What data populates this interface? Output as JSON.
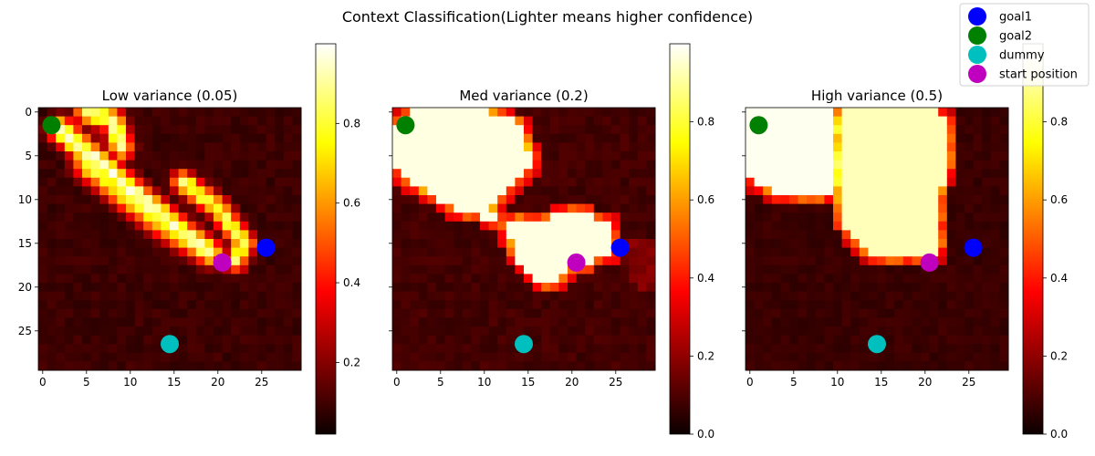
{
  "figure": {
    "title": "Context Classification(Lighter means higher confidence)"
  },
  "legend": {
    "placement": "top-right",
    "entries": [
      {
        "label": "goal1",
        "color": "#0000ff"
      },
      {
        "label": "goal2",
        "color": "#008000"
      },
      {
        "label": "dummy",
        "color": "#00bfbf"
      },
      {
        "label": "start position",
        "color": "#bf00bf"
      }
    ]
  },
  "colormap": "hot",
  "chart_data": [
    {
      "type": "heatmap",
      "title": "Low variance (0.05)",
      "grid_size": [
        30,
        30
      ],
      "xlim": [
        0,
        29
      ],
      "ylim": [
        29,
        0
      ],
      "x_ticks": [
        0,
        5,
        10,
        15,
        20,
        25
      ],
      "y_ticks": [
        0,
        5,
        10,
        15,
        20,
        25
      ],
      "colorbar_ticks": [
        "0.2",
        "0.4",
        "0.6",
        "0.8"
      ],
      "colorbar_range": [
        0.02,
        1.0
      ],
      "markers": [
        {
          "name": "goal1",
          "x": 25.5,
          "y": 15.5,
          "color": "#0000ff"
        },
        {
          "name": "goal2",
          "x": 1,
          "y": 1.5,
          "color": "#008000"
        },
        {
          "name": "dummy",
          "x": 14.5,
          "y": 26.5,
          "color": "#00bfbf"
        },
        {
          "name": "start position",
          "x": 20.5,
          "y": 17.2,
          "color": "#bf00bf"
        }
      ]
    },
    {
      "type": "heatmap",
      "title": "Med variance (0.2)",
      "grid_size": [
        30,
        30
      ],
      "xlim": [
        0,
        29
      ],
      "ylim": [
        29,
        0
      ],
      "x_ticks": [
        0,
        5,
        10,
        15,
        20,
        25
      ],
      "y_ticks": [
        0,
        5,
        10,
        15,
        20,
        25
      ],
      "colorbar_ticks": [
        "0.0",
        "0.2",
        "0.4",
        "0.6",
        "0.8"
      ],
      "colorbar_range": [
        0.0,
        1.0
      ],
      "markers": [
        {
          "name": "goal1",
          "x": 25.5,
          "y": 15.5,
          "color": "#0000ff"
        },
        {
          "name": "goal2",
          "x": 1,
          "y": 1.5,
          "color": "#008000"
        },
        {
          "name": "dummy",
          "x": 14.5,
          "y": 26.5,
          "color": "#00bfbf"
        },
        {
          "name": "start position",
          "x": 20.5,
          "y": 17.2,
          "color": "#bf00bf"
        }
      ]
    },
    {
      "type": "heatmap",
      "title": "High variance (0.5)",
      "grid_size": [
        30,
        30
      ],
      "xlim": [
        0,
        29
      ],
      "ylim": [
        29,
        0
      ],
      "x_ticks": [
        0,
        5,
        10,
        15,
        20,
        25
      ],
      "y_ticks": [
        0,
        5,
        10,
        15,
        20,
        25
      ],
      "colorbar_ticks": [
        "0.0",
        "0.2",
        "0.4",
        "0.6",
        "0.8"
      ],
      "colorbar_range": [
        0.0,
        1.0
      ],
      "markers": [
        {
          "name": "goal1",
          "x": 25.5,
          "y": 15.5,
          "color": "#0000ff"
        },
        {
          "name": "goal2",
          "x": 1,
          "y": 1.5,
          "color": "#008000"
        },
        {
          "name": "dummy",
          "x": 14.5,
          "y": 26.5,
          "color": "#00bfbf"
        },
        {
          "name": "start position",
          "x": 20.5,
          "y": 17.2,
          "color": "#bf00bf"
        }
      ]
    }
  ]
}
